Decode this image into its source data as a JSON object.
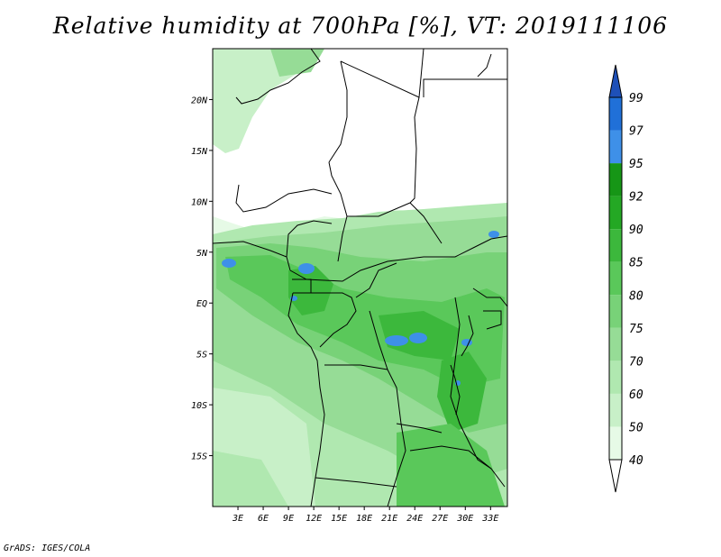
{
  "title": "Relative humidity at 700hPa [%], VT: 2019111106",
  "credit": "GrADS: IGES/COLA",
  "map": {
    "lon_range": [
      0,
      35
    ],
    "lat_range": [
      -20,
      25
    ],
    "lat_ticks": [
      {
        "value": 20,
        "label": "20N"
      },
      {
        "value": 15,
        "label": "15N"
      },
      {
        "value": 10,
        "label": "10N"
      },
      {
        "value": 5,
        "label": "5N"
      },
      {
        "value": 0,
        "label": "EQ"
      },
      {
        "value": -5,
        "label": "5S"
      },
      {
        "value": -10,
        "label": "10S"
      },
      {
        "value": -15,
        "label": "15S"
      }
    ],
    "lon_ticks": [
      {
        "value": 3,
        "label": "3E"
      },
      {
        "value": 6,
        "label": "6E"
      },
      {
        "value": 9,
        "label": "9E"
      },
      {
        "value": 12,
        "label": "12E"
      },
      {
        "value": 15,
        "label": "15E"
      },
      {
        "value": 18,
        "label": "18E"
      },
      {
        "value": 21,
        "label": "21E"
      },
      {
        "value": 24,
        "label": "24E"
      },
      {
        "value": 27,
        "label": "27E"
      },
      {
        "value": 30,
        "label": "30E"
      },
      {
        "value": 33,
        "label": "33E"
      }
    ]
  },
  "colorbar": {
    "levels": [
      "40",
      "50",
      "60",
      "70",
      "75",
      "80",
      "85",
      "90",
      "92",
      "95",
      "97",
      "99"
    ],
    "colors": [
      "#ffffff",
      "#e6fae6",
      "#c8f0c8",
      "#b0e8b0",
      "#96dc96",
      "#78d278",
      "#5ac85a",
      "#3cb83c",
      "#24a824",
      "#169616",
      "#3e90e8",
      "#2070d8",
      "#1e50b8"
    ]
  }
}
